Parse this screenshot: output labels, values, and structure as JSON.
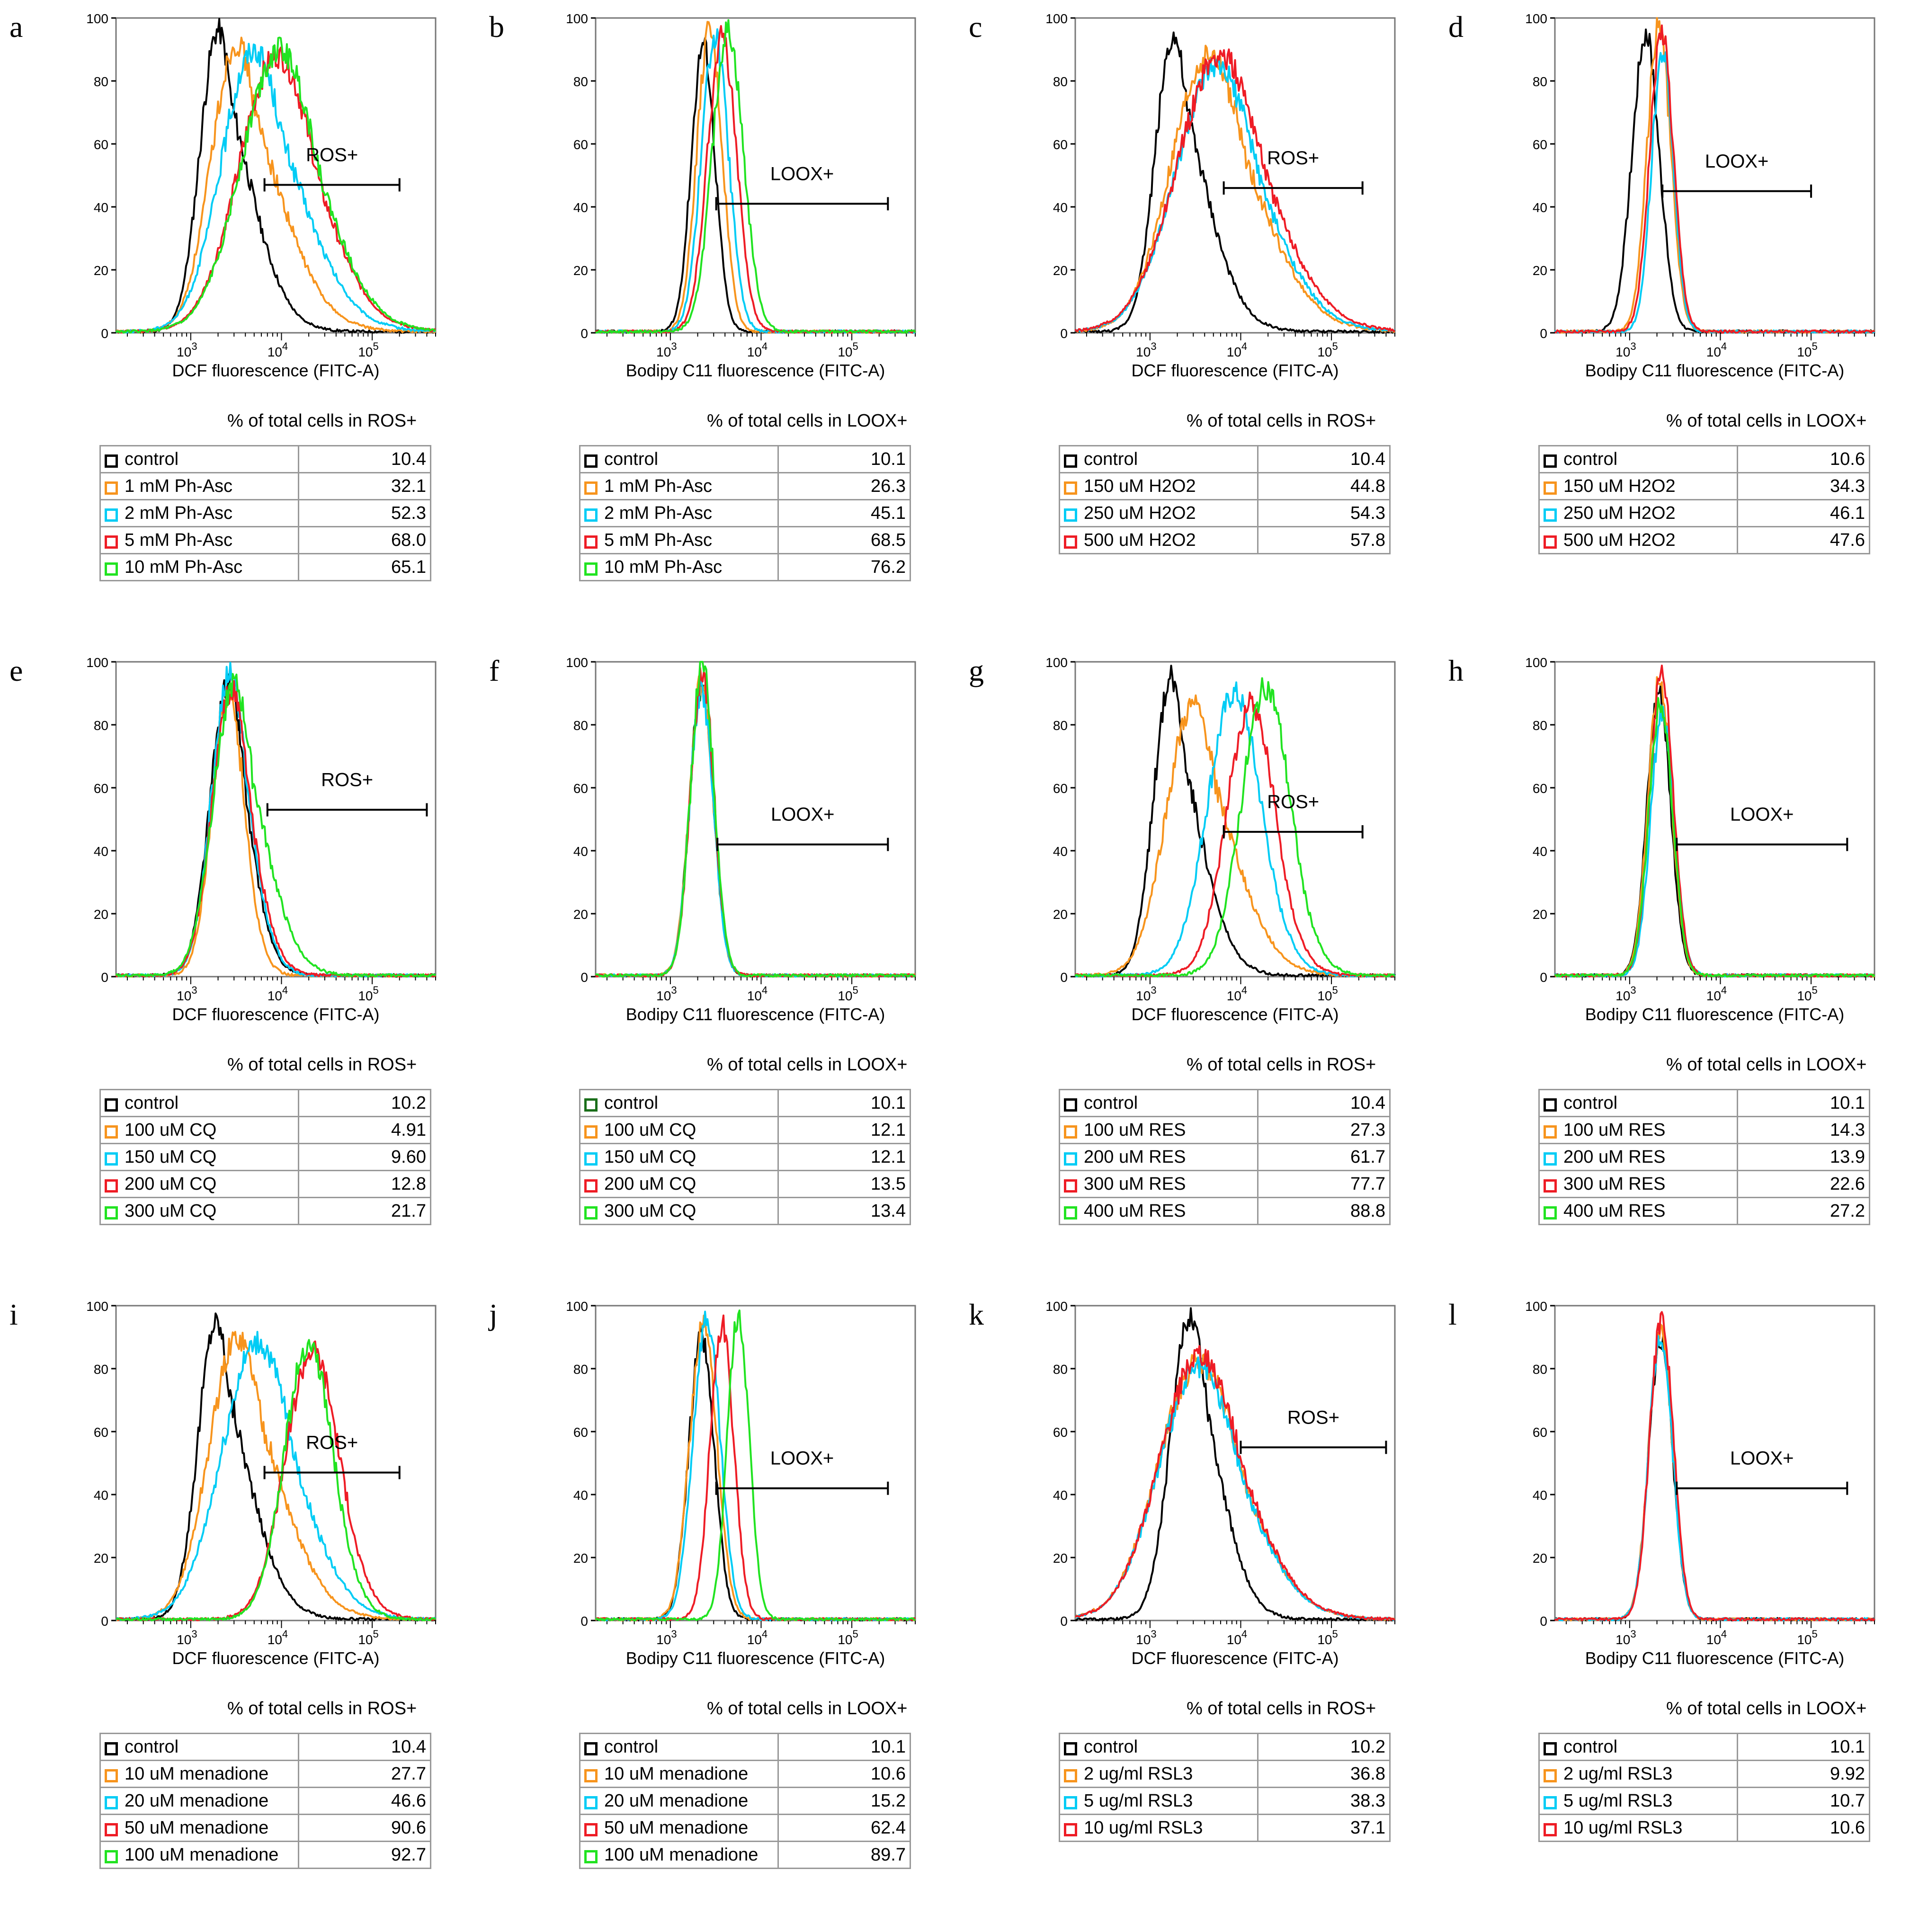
{
  "chart_data": [
    {
      "panel": "a",
      "type": "line",
      "xlabel": "DCF fluorescence (FITC-A)",
      "gate": "ROS+",
      "gate_range": [
        6500,
        200000
      ],
      "gate_y": 47,
      "table_title": "% of total cells in ROS+",
      "series": [
        {
          "name": "control",
          "color": "#000000",
          "value": "10.4",
          "peak": 2000,
          "sigma": 0.2,
          "height": 96,
          "tail": 0.35
        },
        {
          "name": "1 mM Ph-Asc",
          "color": "#f7941d",
          "value": "32.1",
          "peak": 3200,
          "sigma": 0.28,
          "height": 92,
          "tail": 0.3
        },
        {
          "name": "2 mM Ph-Asc",
          "color": "#00ccf5",
          "value": "52.3",
          "peak": 5000,
          "sigma": 0.36,
          "height": 90,
          "tail": 0.2
        },
        {
          "name": "5 mM Ph-Asc",
          "color": "#ee1c25",
          "value": "68.0",
          "peak": 9000,
          "sigma": 0.42,
          "height": 88,
          "tail": 0.1
        },
        {
          "name": "10 mM Ph-Asc",
          "color": "#21e321",
          "value": "65.1",
          "peak": 9500,
          "sigma": 0.42,
          "height": 90,
          "tail": 0.1
        }
      ]
    },
    {
      "panel": "b",
      "type": "line",
      "xlabel": "Bodipy C11 fluorescence (FITC-A)",
      "gate": "LOOX+",
      "gate_range": [
        3200,
        250000
      ],
      "gate_y": 41,
      "table_title": "% of total cells in LOOX+",
      "series": [
        {
          "name": "control",
          "color": "#000000",
          "value": "10.1",
          "peak": 2300,
          "sigma": 0.13,
          "height": 92,
          "tail": 0
        },
        {
          "name": "1 mM Ph-Asc",
          "color": "#f7941d",
          "value": "26.3",
          "peak": 2700,
          "sigma": 0.14,
          "height": 96,
          "tail": 0
        },
        {
          "name": "2 mM Ph-Asc",
          "color": "#00ccf5",
          "value": "45.1",
          "peak": 3100,
          "sigma": 0.15,
          "height": 94,
          "tail": 0
        },
        {
          "name": "5 mM Ph-Asc",
          "color": "#ee1c25",
          "value": "68.5",
          "peak": 3700,
          "sigma": 0.16,
          "height": 94,
          "tail": 0
        },
        {
          "name": "10 mM Ph-Asc",
          "color": "#21e321",
          "value": "76.2",
          "peak": 4300,
          "sigma": 0.17,
          "height": 96,
          "tail": 0
        }
      ]
    },
    {
      "panel": "c",
      "type": "line",
      "xlabel": "DCF fluorescence (FITC-A)",
      "gate": "ROS+",
      "gate_range": [
        6500,
        220000
      ],
      "gate_y": 46,
      "table_title": "% of total cells in ROS+",
      "series": [
        {
          "name": "control",
          "color": "#000000",
          "value": "10.4",
          "peak": 1800,
          "sigma": 0.2,
          "height": 94,
          "tail": 0.35
        },
        {
          "name": "150 uM H2O2",
          "color": "#f7941d",
          "value": "44.8",
          "peak": 4500,
          "sigma": 0.42,
          "height": 88,
          "tail": 0.15
        },
        {
          "name": "250 uM H2O2",
          "color": "#00ccf5",
          "value": "54.3",
          "peak": 5500,
          "sigma": 0.46,
          "height": 84,
          "tail": 0.1
        },
        {
          "name": "500 uM H2O2",
          "color": "#ee1c25",
          "value": "57.8",
          "peak": 6000,
          "sigma": 0.48,
          "height": 88,
          "tail": 0.1
        }
      ]
    },
    {
      "panel": "d",
      "type": "line",
      "xlabel": "Bodipy C11 fluorescence (FITC-A)",
      "gate": "LOOX+",
      "gate_range": [
        2300,
        100000
      ],
      "gate_y": 45,
      "table_title": "% of total cells in LOOX+",
      "series": [
        {
          "name": "control",
          "color": "#000000",
          "value": "10.6",
          "peak": 1500,
          "sigma": 0.15,
          "height": 95,
          "tail": 0
        },
        {
          "name": "150 uM H2O2",
          "color": "#f7941d",
          "value": "34.3",
          "peak": 2100,
          "sigma": 0.13,
          "height": 98,
          "tail": 0
        },
        {
          "name": "250 uM H2O2",
          "color": "#00ccf5",
          "value": "46.1",
          "peak": 2300,
          "sigma": 0.12,
          "height": 89,
          "tail": 0
        },
        {
          "name": "500 uM H2O2",
          "color": "#ee1c25",
          "value": "47.6",
          "peak": 2250,
          "sigma": 0.13,
          "height": 96,
          "tail": 0
        }
      ]
    },
    {
      "panel": "e",
      "type": "line",
      "xlabel": "DCF fluorescence (FITC-A)",
      "gate": "ROS+",
      "gate_range": [
        7000,
        400000
      ],
      "gate_y": 53,
      "table_title": "% of total cells in ROS+",
      "series": [
        {
          "name": "control",
          "color": "#000000",
          "value": "10.2",
          "peak": 2600,
          "sigma": 0.2,
          "height": 93,
          "tail": 0.1
        },
        {
          "name": "100 uM CQ",
          "color": "#f7941d",
          "value": "4.91",
          "peak": 2600,
          "sigma": 0.18,
          "height": 90,
          "tail": 0.05
        },
        {
          "name": "150 uM CQ",
          "color": "#00ccf5",
          "value": "9.60",
          "peak": 2700,
          "sigma": 0.2,
          "height": 96,
          "tail": 0.1
        },
        {
          "name": "200 uM CQ",
          "color": "#ee1c25",
          "value": "12.8",
          "peak": 2800,
          "sigma": 0.21,
          "height": 91,
          "tail": 0.1
        },
        {
          "name": "300 uM CQ",
          "color": "#21e321",
          "value": "21.7",
          "peak": 3000,
          "sigma": 0.23,
          "height": 93,
          "tail": 0.2
        }
      ]
    },
    {
      "panel": "f",
      "type": "line",
      "xlabel": "Bodipy C11 fluorescence (FITC-A)",
      "gate": "LOOX+",
      "gate_range": [
        3300,
        250000
      ],
      "gate_y": 42,
      "table_title": "% of total cells in LOOX+",
      "series": [
        {
          "name": "control",
          "color": "#1a6e1a",
          "value": "10.1",
          "peak": 2200,
          "sigma": 0.13,
          "height": 92,
          "tail": 0
        },
        {
          "name": "100 uM CQ",
          "color": "#f7941d",
          "value": "12.1",
          "peak": 2200,
          "sigma": 0.13,
          "height": 94,
          "tail": 0
        },
        {
          "name": "150 uM CQ",
          "color": "#00ccf5",
          "value": "12.1",
          "peak": 2200,
          "sigma": 0.13,
          "height": 91,
          "tail": 0
        },
        {
          "name": "200 uM CQ",
          "color": "#ee1c25",
          "value": "13.5",
          "peak": 2250,
          "sigma": 0.13,
          "height": 96,
          "tail": 0
        },
        {
          "name": "300 uM CQ",
          "color": "#21e321",
          "value": "13.4",
          "peak": 2250,
          "sigma": 0.13,
          "height": 99,
          "tail": 0
        }
      ]
    },
    {
      "panel": "g",
      "type": "line",
      "xlabel": "DCF fluorescence (FITC-A)",
      "gate": "ROS+",
      "gate_range": [
        6500,
        220000
      ],
      "gate_y": 46,
      "table_title": "% of total cells in ROS+",
      "series": [
        {
          "name": "control",
          "color": "#000000",
          "value": "10.4",
          "peak": 1700,
          "sigma": 0.19,
          "height": 95,
          "tail": 0.3
        },
        {
          "name": "100 uM RES",
          "color": "#f7941d",
          "value": "27.3",
          "peak": 3000,
          "sigma": 0.3,
          "height": 86,
          "tail": 0.2
        },
        {
          "name": "200 uM RES",
          "color": "#00ccf5",
          "value": "61.7",
          "peak": 8500,
          "sigma": 0.3,
          "height": 90,
          "tail": 0.05
        },
        {
          "name": "300 uM RES",
          "color": "#ee1c25",
          "value": "77.7",
          "peak": 13000,
          "sigma": 0.27,
          "height": 87,
          "tail": 0.05
        },
        {
          "name": "400 uM RES",
          "color": "#21e321",
          "value": "88.8",
          "peak": 19000,
          "sigma": 0.27,
          "height": 92,
          "tail": 0.05
        }
      ]
    },
    {
      "panel": "h",
      "type": "line",
      "xlabel": "Bodipy C11 fluorescence (FITC-A)",
      "gate": "LOOX+",
      "gate_range": [
        3300,
        250000
      ],
      "gate_y": 42,
      "table_title": "% of total cells in LOOX+",
      "series": [
        {
          "name": "control",
          "color": "#000000",
          "value": "10.1",
          "peak": 2100,
          "sigma": 0.13,
          "height": 91,
          "tail": 0
        },
        {
          "name": "100 uM RES",
          "color": "#f7941d",
          "value": "14.3",
          "peak": 2150,
          "sigma": 0.13,
          "height": 94,
          "tail": 0
        },
        {
          "name": "200 uM RES",
          "color": "#00ccf5",
          "value": "13.9",
          "peak": 2300,
          "sigma": 0.13,
          "height": 84,
          "tail": 0
        },
        {
          "name": "300 uM RES",
          "color": "#ee1c25",
          "value": "22.6",
          "peak": 2250,
          "sigma": 0.13,
          "height": 97,
          "tail": 0
        },
        {
          "name": "400 uM RES",
          "color": "#21e321",
          "value": "27.2",
          "peak": 2200,
          "sigma": 0.13,
          "height": 88,
          "tail": 0
        }
      ]
    },
    {
      "panel": "i",
      "type": "line",
      "xlabel": "DCF fluorescence (FITC-A)",
      "gate": "ROS+",
      "gate_range": [
        6500,
        200000
      ],
      "gate_y": 47,
      "table_title": "% of total cells in ROS+",
      "series": [
        {
          "name": "control",
          "color": "#000000",
          "value": "10.4",
          "peak": 1900,
          "sigma": 0.2,
          "height": 95,
          "tail": 0.35
        },
        {
          "name": "10 uM menadione",
          "color": "#f7941d",
          "value": "27.7",
          "peak": 3300,
          "sigma": 0.32,
          "height": 90,
          "tail": 0.2
        },
        {
          "name": "20 uM menadione",
          "color": "#00ccf5",
          "value": "46.6",
          "peak": 5500,
          "sigma": 0.4,
          "height": 88,
          "tail": 0.1
        },
        {
          "name": "50 uM menadione",
          "color": "#ee1c25",
          "value": "90.6",
          "peak": 22000,
          "sigma": 0.3,
          "height": 86,
          "tail": 0.05
        },
        {
          "name": "100 uM menadione",
          "color": "#21e321",
          "value": "92.7",
          "peak": 20000,
          "sigma": 0.27,
          "height": 88,
          "tail": 0.05
        }
      ]
    },
    {
      "panel": "j",
      "type": "line",
      "xlabel": "Bodipy C11 fluorescence (FITC-A)",
      "gate": "LOOX+",
      "gate_range": [
        3200,
        250000
      ],
      "gate_y": 42,
      "table_title": "% of total cells in LOOX+",
      "series": [
        {
          "name": "control",
          "color": "#000000",
          "value": "10.1",
          "peak": 2200,
          "sigma": 0.14,
          "height": 90,
          "tail": 0
        },
        {
          "name": "10 uM menadione",
          "color": "#f7941d",
          "value": "10.6",
          "peak": 2300,
          "sigma": 0.15,
          "height": 95,
          "tail": 0
        },
        {
          "name": "20 uM menadione",
          "color": "#00ccf5",
          "value": "15.2",
          "peak": 2500,
          "sigma": 0.15,
          "height": 96,
          "tail": 0
        },
        {
          "name": "50 uM menadione",
          "color": "#ee1c25",
          "value": "62.4",
          "peak": 3700,
          "sigma": 0.13,
          "height": 94,
          "tail": 0
        },
        {
          "name": "100 uM menadione",
          "color": "#21e321",
          "value": "89.7",
          "peak": 5600,
          "sigma": 0.12,
          "height": 97,
          "tail": 0
        }
      ]
    },
    {
      "panel": "k",
      "type": "line",
      "xlabel": "DCF fluorescence (FITC-A)",
      "gate": "ROS+",
      "gate_range": [
        10000,
        400000
      ],
      "gate_y": 55,
      "table_title": "% of total cells in ROS+",
      "series": [
        {
          "name": "control",
          "color": "#000000",
          "value": "10.2",
          "peak": 2800,
          "sigma": 0.22,
          "height": 97,
          "tail": 0.2
        },
        {
          "name": "2 ug/ml RSL3",
          "color": "#f7941d",
          "value": "36.8",
          "peak": 3500,
          "sigma": 0.45,
          "height": 82,
          "tail": 0.1
        },
        {
          "name": "5 ug/ml RSL3",
          "color": "#00ccf5",
          "value": "38.3",
          "peak": 3500,
          "sigma": 0.45,
          "height": 80,
          "tail": 0.1
        },
        {
          "name": "10 ug/ml RSL3",
          "color": "#ee1c25",
          "value": "37.1",
          "peak": 3600,
          "sigma": 0.45,
          "height": 84,
          "tail": 0.1
        }
      ]
    },
    {
      "panel": "l",
      "type": "line",
      "xlabel": "Bodipy C11 fluorescence (FITC-A)",
      "gate": "LOOX+",
      "gate_range": [
        3300,
        250000
      ],
      "gate_y": 42,
      "table_title": "% of total cells in LOOX+",
      "series": [
        {
          "name": "control",
          "color": "#000000",
          "value": "10.1",
          "peak": 2200,
          "sigma": 0.13,
          "height": 90,
          "tail": 0
        },
        {
          "name": "2 ug/ml RSL3",
          "color": "#f7941d",
          "value": "9.92",
          "peak": 2200,
          "sigma": 0.13,
          "height": 93,
          "tail": 0
        },
        {
          "name": "5 ug/ml RSL3",
          "color": "#00ccf5",
          "value": "10.7",
          "peak": 2200,
          "sigma": 0.13,
          "height": 91,
          "tail": 0
        },
        {
          "name": "10 ug/ml RSL3",
          "color": "#ee1c25",
          "value": "10.6",
          "peak": 2250,
          "sigma": 0.13,
          "height": 96,
          "tail": 0
        }
      ]
    }
  ],
  "axes": {
    "x_min": 150,
    "x_max": 500000,
    "y_min": 0,
    "y_max": 100,
    "y_ticks": [
      "0",
      "20",
      "40",
      "60",
      "80",
      "100"
    ],
    "x_ticks": [
      {
        "base": "10",
        "exp": "3",
        "value": 1000
      },
      {
        "base": "10",
        "exp": "4",
        "value": 10000
      },
      {
        "base": "10",
        "exp": "5",
        "value": 100000
      }
    ]
  }
}
